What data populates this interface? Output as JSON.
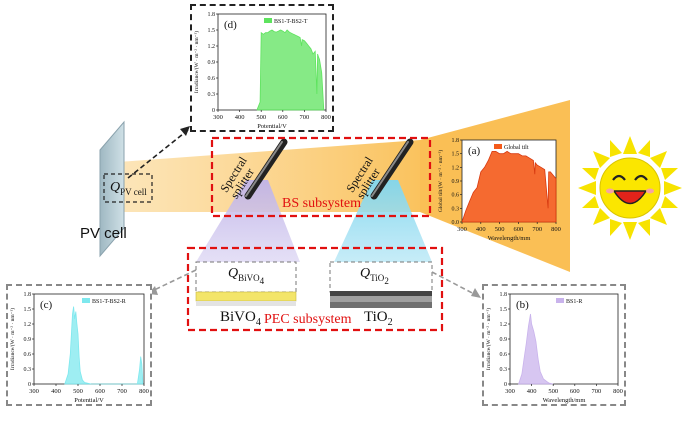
{
  "labels": {
    "pv_cell": "PV cell",
    "bs_subsystem": "BS subsystem",
    "pec_subsystem": "PEC subsystem",
    "splitter_line1": "Spectral",
    "splitter_line2": "splitter",
    "q_pv": "Q",
    "q_pv_sub": "PV cell",
    "q_bivo4": "Q",
    "q_bivo4_sub": "BiVO",
    "q_bivo4_sub2": "4",
    "q_tio2": "Q",
    "q_tio2_sub": "TiO",
    "q_tio2_sub2": "2",
    "mat_left": "BiVO",
    "mat_left_sub": "4",
    "mat_right": "TiO",
    "mat_right_sub": "2"
  },
  "colors": {
    "beam": "#f9b437",
    "highlight_red": "#e11010",
    "panel_d": "#5ee35e",
    "panel_a": "#f45a1a",
    "panel_c": "#7ee8ee",
    "panel_b": "#c9b3ec"
  },
  "chart_data": [
    {
      "type": "area",
      "panel": "(d)",
      "legend": "BS1-T-BS2-T",
      "ylabel": "Irradiance/(W · m⁻² · nm⁻¹)",
      "xlabel": "Potential/V",
      "xlim": [
        300,
        800
      ],
      "ylim": [
        0,
        1.8
      ],
      "xticks": [
        "300",
        "400",
        "500",
        "600",
        "700",
        "800"
      ],
      "yticks": [
        "0",
        "0.3",
        "0.6",
        "0.9",
        "1.2",
        "1.5",
        "1.8"
      ],
      "x": [
        480,
        495,
        500,
        510,
        520,
        530,
        540,
        550,
        560,
        570,
        580,
        590,
        600,
        610,
        620,
        630,
        640,
        650,
        660,
        670,
        680,
        687,
        690,
        700,
        710,
        720,
        730,
        740,
        750,
        758,
        761,
        765,
        770,
        780,
        790
      ],
      "y": [
        0,
        0.15,
        1.45,
        1.42,
        1.45,
        1.45,
        1.48,
        1.5,
        1.47,
        1.46,
        1.48,
        1.5,
        1.48,
        1.45,
        1.5,
        1.46,
        1.44,
        1.42,
        1.4,
        1.38,
        1.36,
        1.2,
        1.32,
        1.3,
        1.25,
        1.2,
        1.15,
        1.05,
        1.1,
        0.3,
        1.05,
        1.0,
        0.95,
        0.7,
        0.0
      ]
    },
    {
      "type": "area",
      "panel": "(a)",
      "legend": "Global tilt",
      "ylabel": "Global tilt/(W · m⁻² · nm⁻¹)",
      "xlabel": "Wavelength/mm",
      "xlim": [
        300,
        800
      ],
      "ylim": [
        0,
        1.8
      ],
      "xticks": [
        "300",
        "400",
        "500",
        "600",
        "700",
        "800"
      ],
      "yticks": [
        "0.0",
        "0.3",
        "0.6",
        "0.9",
        "1.2",
        "1.5",
        "1.8"
      ],
      "x": [
        300,
        320,
        340,
        360,
        380,
        400,
        420,
        440,
        460,
        480,
        500,
        520,
        540,
        560,
        580,
        600,
        620,
        640,
        660,
        680,
        687,
        690,
        700,
        720,
        740,
        758,
        761,
        770,
        790,
        800
      ],
      "y": [
        0.0,
        0.25,
        0.45,
        0.65,
        0.75,
        1.1,
        1.2,
        1.35,
        1.55,
        1.55,
        1.5,
        1.5,
        1.55,
        1.5,
        1.5,
        1.5,
        1.45,
        1.45,
        1.4,
        1.35,
        1.05,
        1.3,
        1.25,
        1.2,
        1.15,
        0.3,
        1.1,
        1.1,
        1.0,
        0.95
      ]
    },
    {
      "type": "area",
      "panel": "(c)",
      "legend": "BS1-T-BS2-R",
      "ylabel": "Irradiance/(W · m⁻² · nm⁻¹)",
      "xlabel": "Potential/V",
      "xlim": [
        300,
        800
      ],
      "ylim": [
        0,
        1.8
      ],
      "xticks": [
        "300",
        "400",
        "500",
        "600",
        "700",
        "800"
      ],
      "yticks": [
        "0",
        "0.3",
        "0.6",
        "0.9",
        "1.2",
        "1.5",
        "1.8"
      ],
      "x": [
        440,
        455,
        465,
        475,
        480,
        485,
        490,
        495,
        500,
        505,
        510,
        520,
        530,
        560,
        770,
        780,
        785,
        790,
        795
      ],
      "y": [
        0,
        0.2,
        0.6,
        1.4,
        1.55,
        1.3,
        1.45,
        1.2,
        1.0,
        0.55,
        0.25,
        0.08,
        0.03,
        0.0,
        0.0,
        0.3,
        0.55,
        0.4,
        0.0
      ]
    },
    {
      "type": "area",
      "panel": "(b)",
      "legend": "BS1-R",
      "ylabel": "Irradiance/(W · m⁻² · nm⁻¹)",
      "xlabel": "Wavelength/mm",
      "xlim": [
        300,
        800
      ],
      "ylim": [
        0,
        1.8
      ],
      "xticks": [
        "300",
        "400",
        "500",
        "600",
        "700",
        "800"
      ],
      "yticks": [
        "0",
        "0.3",
        "0.6",
        "0.9",
        "1.2",
        "1.5",
        "1.8"
      ],
      "x": [
        340,
        355,
        365,
        375,
        385,
        395,
        400,
        410,
        420,
        430,
        440,
        455,
        470,
        480,
        500
      ],
      "y": [
        0,
        0.2,
        0.5,
        0.8,
        1.15,
        1.4,
        1.2,
        1.05,
        0.85,
        0.5,
        0.25,
        0.1,
        0.05,
        0.02,
        0.0
      ]
    }
  ]
}
